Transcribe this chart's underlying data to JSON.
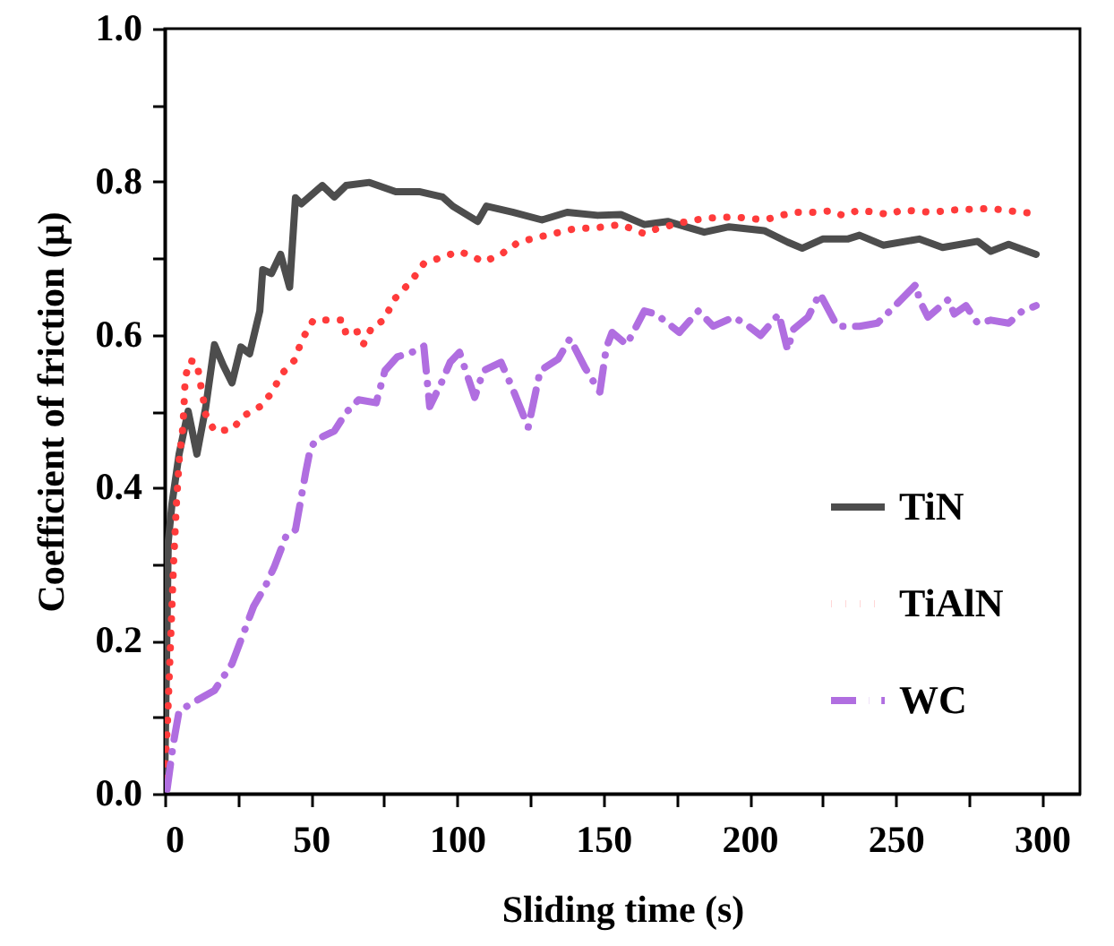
{
  "chart_data": {
    "type": "line",
    "xlabel": "Sliding time (s)",
    "ylabel": "Coefficient of friction (μ)",
    "xlim": [
      0,
      313
    ],
    "ylim": [
      0,
      1
    ],
    "xticks": [
      0,
      {
        "value": 25,
        "label": null
      },
      50,
      {
        "value": 75,
        "label": null
      },
      100,
      {
        "value": 125,
        "label": null
      },
      150,
      {
        "value": 175,
        "label": null
      },
      200,
      {
        "value": 225,
        "label": null
      },
      250,
      {
        "value": 275,
        "label": null
      },
      300
    ],
    "yticks": [
      {
        "value": 0,
        "label": "0.0"
      },
      {
        "value": 0.1,
        "label": null
      },
      0.2,
      {
        "value": 0.3,
        "label": null
      },
      0.4,
      {
        "value": 0.5,
        "label": null
      },
      0.6,
      {
        "value": 0.7,
        "label": null
      },
      0.8,
      {
        "value": 0.9,
        "label": null
      },
      {
        "value": 1,
        "label": "1.0"
      }
    ],
    "grid": false,
    "legend": "bottom right",
    "series": [
      {
        "name": "TiN",
        "color": "#4d4d4d",
        "line_style": "solid",
        "x": [
          0,
          1.2,
          2.5,
          4.9,
          8,
          11,
          14,
          17,
          20,
          23,
          26,
          29,
          32.5,
          33.5,
          36.5,
          39.6,
          42.7,
          44.7,
          46.7,
          53.9,
          58,
          62,
          70,
          79,
          87,
          95,
          98.5,
          107,
          110,
          119,
          129,
          137.6,
          148,
          156,
          164,
          172,
          184.5,
          193,
          205,
          213,
          218,
          225,
          233.5,
          237.6,
          245.7,
          258,
          266,
          278,
          282.5,
          288.6,
          298
        ],
        "values": [
          0.02,
          0.33,
          0.38,
          0.444,
          0.5,
          0.444,
          0.505,
          0.587,
          0.56,
          0.537,
          0.584,
          0.575,
          0.631,
          0.685,
          0.68,
          0.705,
          0.662,
          0.779,
          0.771,
          0.795,
          0.78,
          0.795,
          0.799,
          0.787,
          0.787,
          0.78,
          0.768,
          0.748,
          0.768,
          0.76,
          0.75,
          0.76,
          0.756,
          0.757,
          0.744,
          0.748,
          0.734,
          0.741,
          0.736,
          0.721,
          0.713,
          0.725,
          0.725,
          0.73,
          0.717,
          0.725,
          0.714,
          0.722,
          0.709,
          0.718,
          0.705
        ]
      },
      {
        "name": "TiAlN",
        "color": "#ff3b3b",
        "line_style": "dotted",
        "x": [
          0,
          1,
          2,
          3,
          4,
          5,
          6,
          6.5,
          7,
          8.6,
          11,
          12,
          13,
          14,
          17,
          23,
          27,
          33,
          36.3,
          40.3,
          44.7,
          46.7,
          50.8,
          55,
          61,
          62,
          66,
          68,
          71,
          75,
          78.4,
          84.5,
          88.6,
          94.6,
          100.8,
          106,
          109,
          115,
          121,
          129.5,
          139.6,
          148,
          156,
          164,
          168,
          176,
          184.5,
          194.6,
          205,
          211,
          215,
          223,
          227.7,
          231.8,
          237.6,
          247.8,
          252,
          262,
          270,
          282.5,
          290.7,
          298
        ],
        "values": [
          0.02,
          0.1,
          0.2,
          0.3,
          0.38,
          0.44,
          0.471,
          0.5,
          0.544,
          0.566,
          0.564,
          0.54,
          0.52,
          0.496,
          0.474,
          0.476,
          0.494,
          0.507,
          0.523,
          0.55,
          0.568,
          0.592,
          0.619,
          0.619,
          0.619,
          0.6,
          0.604,
          0.588,
          0.611,
          0.619,
          0.646,
          0.671,
          0.693,
          0.701,
          0.709,
          0.701,
          0.695,
          0.705,
          0.721,
          0.729,
          0.738,
          0.74,
          0.744,
          0.732,
          0.738,
          0.746,
          0.752,
          0.754,
          0.75,
          0.756,
          0.76,
          0.76,
          0.762,
          0.756,
          0.763,
          0.757,
          0.763,
          0.76,
          0.763,
          0.765,
          0.761,
          0.758
        ]
      },
      {
        "name": "WC",
        "color": "#b06ee0",
        "line_style": "dashdot",
        "x": [
          0.8,
          2.9,
          4.9,
          10,
          17,
          23,
          30.4,
          34.5,
          37.5,
          41.6,
          44.7,
          48.2,
          49.8,
          51.8,
          58,
          62,
          66.3,
          72.3,
          75.3,
          79.5,
          84.5,
          88.6,
          90.6,
          94.6,
          97.6,
          100.8,
          106,
          109,
          115,
          119,
          124.3,
          128.4,
          134.5,
          138.6,
          143.7,
          148.8,
          151,
          153,
          158,
          164,
          168,
          176,
          182.5,
          187.6,
          194.6,
          199.7,
          203.8,
          210,
          213,
          215,
          220,
          224,
          230,
          237.6,
          243.7,
          248.8,
          257,
          258,
          261,
          268,
          270,
          274,
          278,
          282.5,
          288.6,
          293,
          298
        ],
        "values": [
          0.006,
          0.065,
          0.108,
          0.12,
          0.135,
          0.17,
          0.245,
          0.272,
          0.297,
          0.338,
          0.345,
          0.42,
          0.451,
          0.463,
          0.474,
          0.498,
          0.515,
          0.511,
          0.553,
          0.571,
          0.577,
          0.585,
          0.506,
          0.537,
          0.564,
          0.577,
          0.518,
          0.553,
          0.564,
          0.529,
          0.479,
          0.553,
          0.568,
          0.595,
          0.557,
          0.525,
          0.583,
          0.603,
          0.587,
          0.631,
          0.627,
          0.603,
          0.631,
          0.611,
          0.623,
          0.611,
          0.599,
          0.627,
          0.58,
          0.607,
          0.623,
          0.654,
          0.611,
          0.611,
          0.615,
          0.634,
          0.666,
          0.646,
          0.623,
          0.646,
          0.627,
          0.638,
          0.615,
          0.619,
          0.615,
          0.63,
          0.638
        ]
      }
    ]
  }
}
